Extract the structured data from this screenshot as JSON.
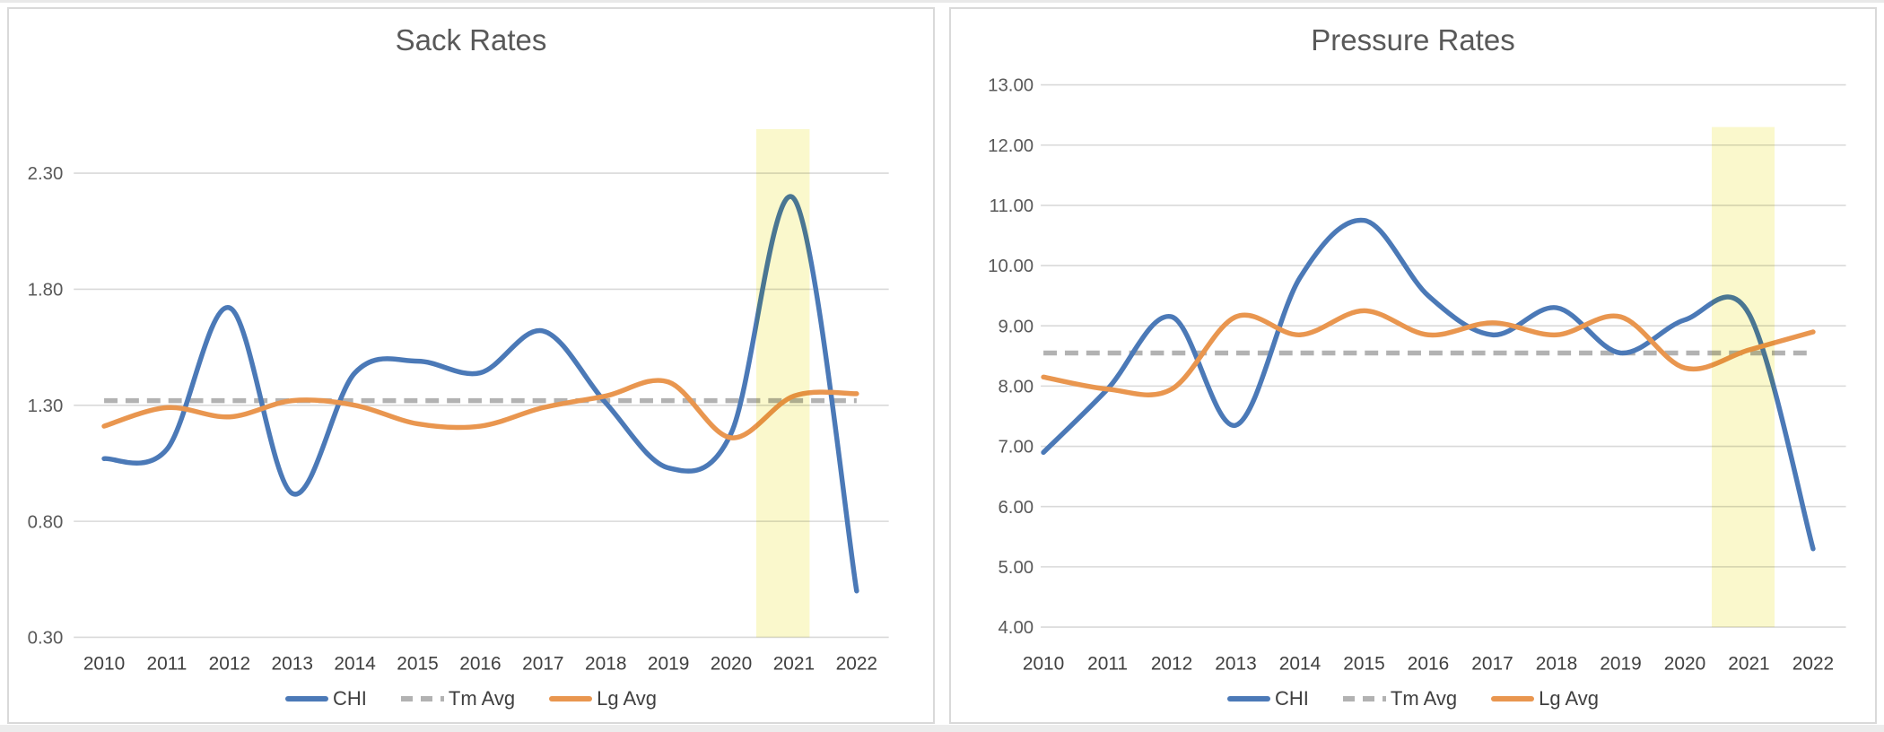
{
  "page": {
    "background": "#ffffff",
    "panel_border_color": "#d9d9d9",
    "gridline_color": "#d9d9d9",
    "title_color": "#595959",
    "tick_label_color": "#595959"
  },
  "chart_data": [
    {
      "type": "line",
      "title": "Sack Rates",
      "categories": [
        2010,
        2011,
        2012,
        2013,
        2014,
        2015,
        2016,
        2017,
        2018,
        2019,
        2020,
        2021,
        2022
      ],
      "x_tick_labels": [
        "2010",
        "2011",
        "2012",
        "2013",
        "2014",
        "2015",
        "2016",
        "2017",
        "2018",
        "2019",
        "2020",
        "2021",
        "2022"
      ],
      "ylim": [
        0.3,
        2.3
      ],
      "ytick_step": 0.5,
      "ytick_labels": [
        "0.30",
        "0.80",
        "1.30",
        "1.80",
        "2.30"
      ],
      "grid": true,
      "legend_position": "bottom",
      "series": [
        {
          "name": "CHI",
          "style": "solid",
          "color": "#4b79b7",
          "values": [
            1.07,
            1.11,
            1.72,
            0.92,
            1.44,
            1.49,
            1.44,
            1.62,
            1.31,
            1.03,
            1.18,
            2.19,
            0.5
          ]
        },
        {
          "name": "Tm Avg",
          "style": "dashed",
          "color": "#b2b2b2",
          "constant": 1.32
        },
        {
          "name": "Lg Avg",
          "style": "solid",
          "color": "#e9964f",
          "values": [
            1.21,
            1.29,
            1.25,
            1.32,
            1.3,
            1.22,
            1.21,
            1.29,
            1.34,
            1.4,
            1.16,
            1.34,
            1.35
          ]
        }
      ],
      "highlight_band": {
        "x_start": 2020.4,
        "x_end": 2021.25,
        "y_top": 2.49,
        "color": "#faf8cc"
      }
    },
    {
      "type": "line",
      "title": "Pressure Rates",
      "categories": [
        2010,
        2011,
        2012,
        2013,
        2014,
        2015,
        2016,
        2017,
        2018,
        2019,
        2020,
        2021,
        2022
      ],
      "x_tick_labels": [
        "2010",
        "2011",
        "2012",
        "2013",
        "2014",
        "2015",
        "2016",
        "2017",
        "2018",
        "2019",
        "2020",
        "2021",
        "2022"
      ],
      "ylim": [
        4.0,
        13.0
      ],
      "ytick_step": 1.0,
      "ytick_labels": [
        "4.00",
        "5.00",
        "6.00",
        "7.00",
        "8.00",
        "9.00",
        "10.00",
        "11.00",
        "12.00",
        "13.00"
      ],
      "grid": true,
      "legend_position": "bottom",
      "series": [
        {
          "name": "CHI",
          "style": "solid",
          "color": "#4b79b7",
          "values": [
            6.9,
            7.95,
            9.15,
            7.35,
            9.8,
            10.75,
            9.5,
            8.85,
            9.3,
            8.55,
            9.1,
            9.2,
            5.3
          ]
        },
        {
          "name": "Tm Avg",
          "style": "dashed",
          "color": "#b2b2b2",
          "constant": 8.55
        },
        {
          "name": "Lg Avg",
          "style": "solid",
          "color": "#e9964f",
          "values": [
            8.15,
            7.95,
            7.95,
            9.15,
            8.85,
            9.25,
            8.85,
            9.05,
            8.85,
            9.15,
            8.3,
            8.6,
            8.9
          ]
        }
      ],
      "highlight_band": {
        "x_start": 2020.42,
        "x_end": 2021.4,
        "y_top": 12.3,
        "color": "#faf8cc"
      }
    }
  ]
}
